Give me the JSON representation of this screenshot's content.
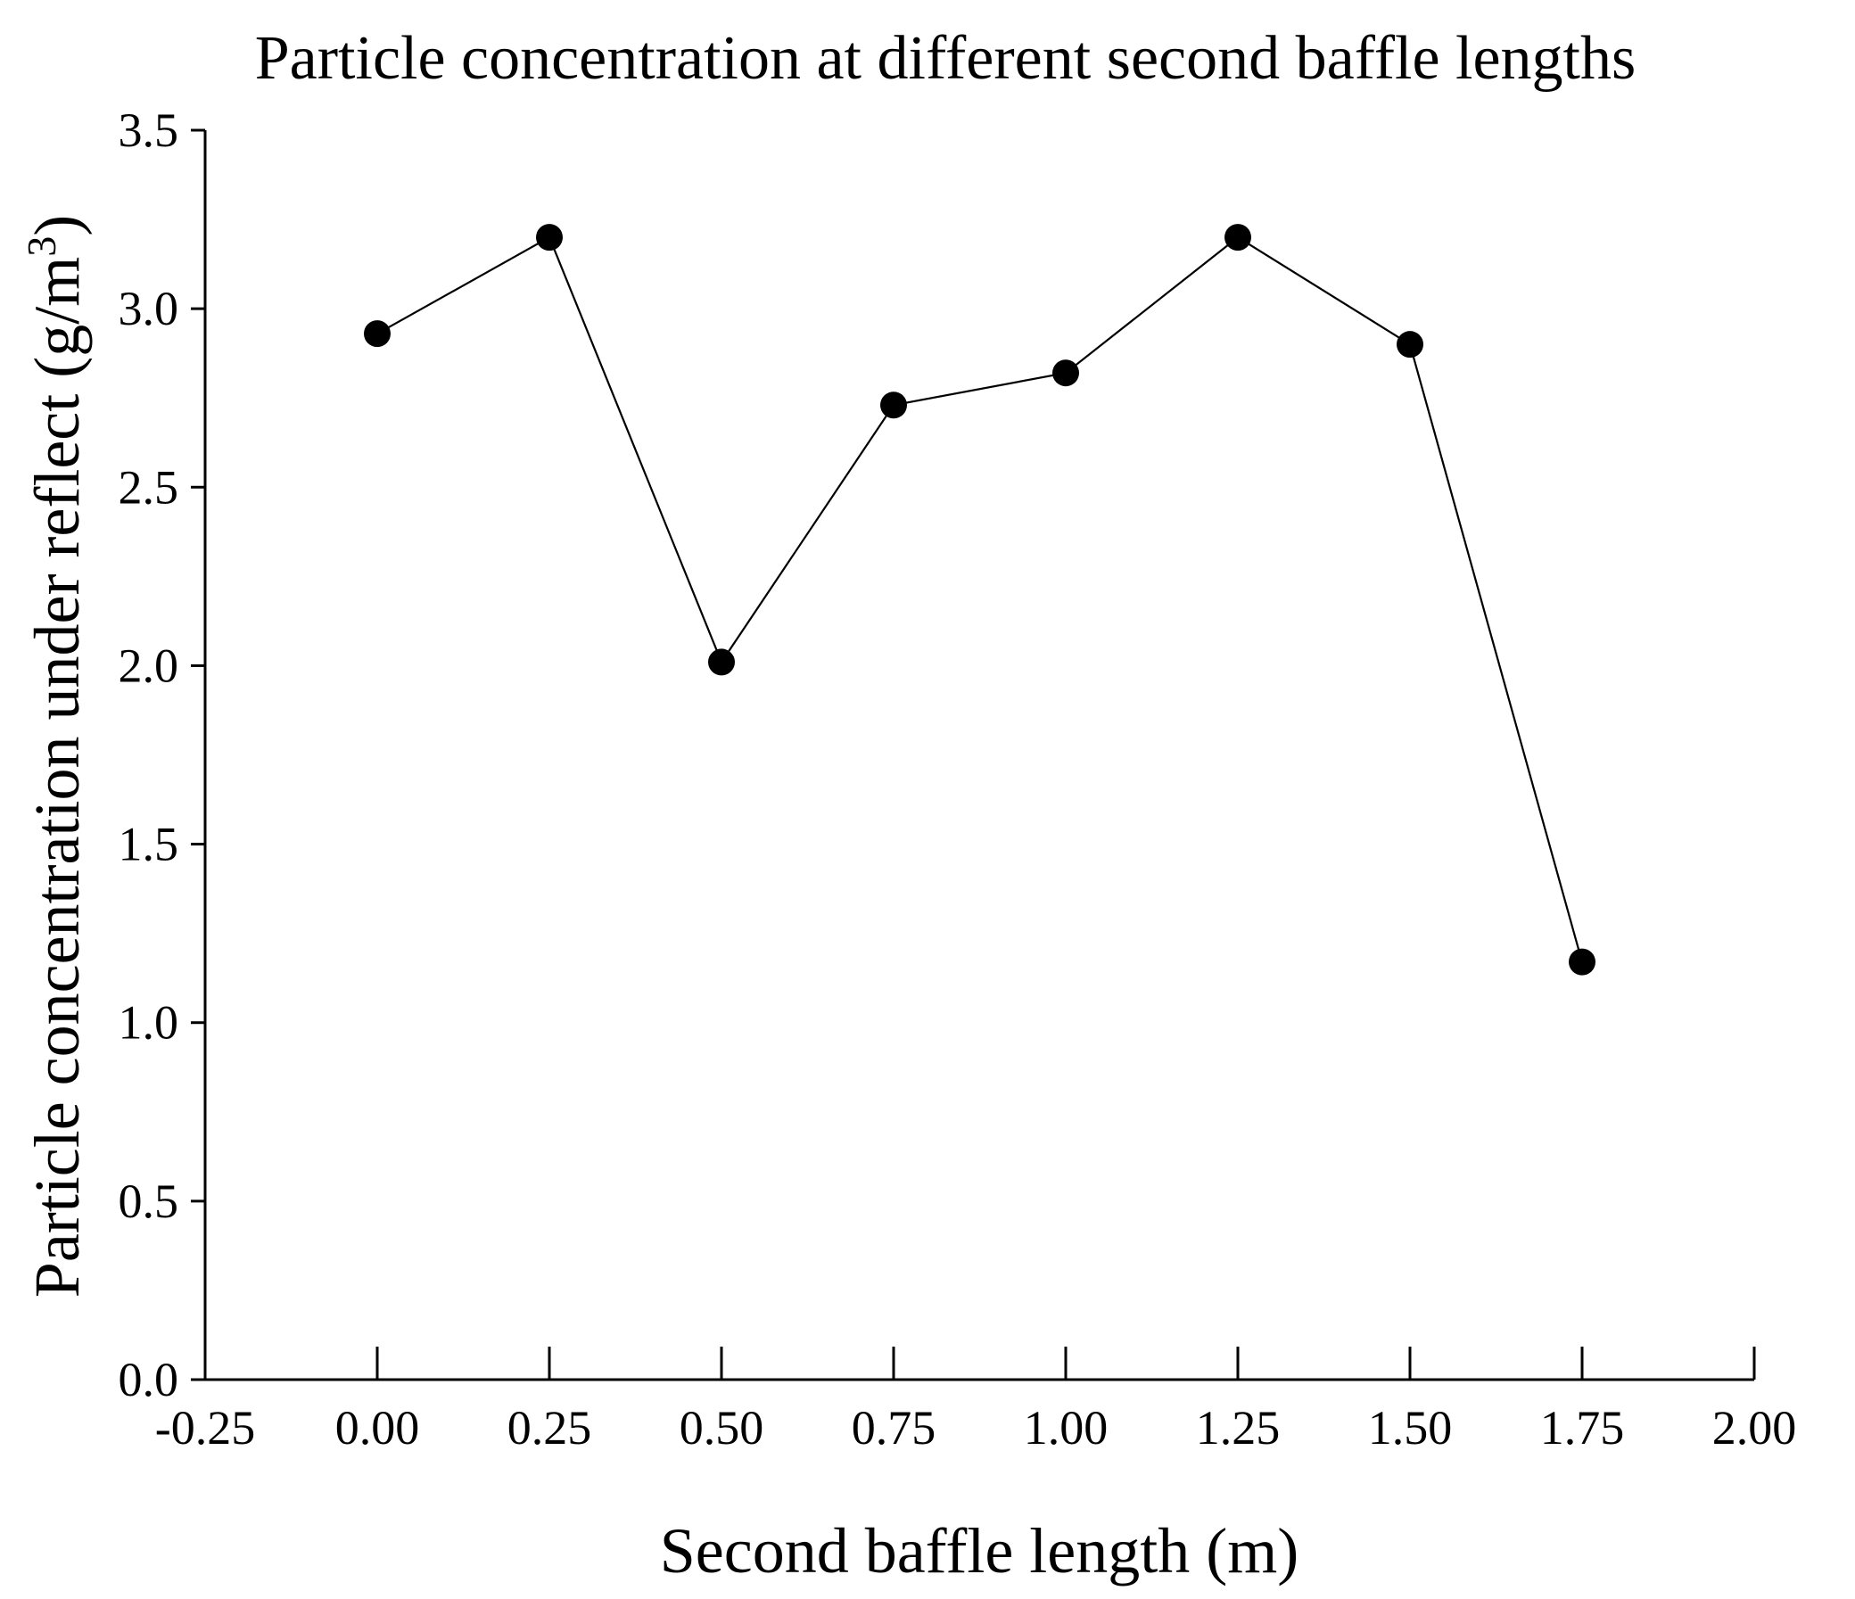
{
  "chart_data": {
    "type": "line",
    "title": "Particle concentration at different second baffle lengths",
    "xlabel": "Second baffle length (m)",
    "ylabel_main": "Particle concentration under reflect (g/m",
    "ylabel_sup": "3",
    "ylabel_close": ")",
    "xlim": [
      -0.25,
      2.0
    ],
    "ylim": [
      0.0,
      3.5
    ],
    "x_ticks": [
      "-0.25",
      "0.00",
      "0.25",
      "0.50",
      "0.75",
      "1.00",
      "1.25",
      "1.50",
      "1.75",
      "2.00"
    ],
    "y_ticks": [
      "0.0",
      "0.5",
      "1.0",
      "1.5",
      "2.0",
      "2.5",
      "3.0",
      "3.5"
    ],
    "grid": false,
    "series": [
      {
        "name": "Particle concentration",
        "x": [
          0.0,
          0.25,
          0.5,
          0.75,
          1.0,
          1.25,
          1.5,
          1.75
        ],
        "values": [
          2.93,
          3.2,
          2.01,
          2.73,
          2.82,
          3.2,
          2.9,
          1.17
        ]
      }
    ]
  }
}
